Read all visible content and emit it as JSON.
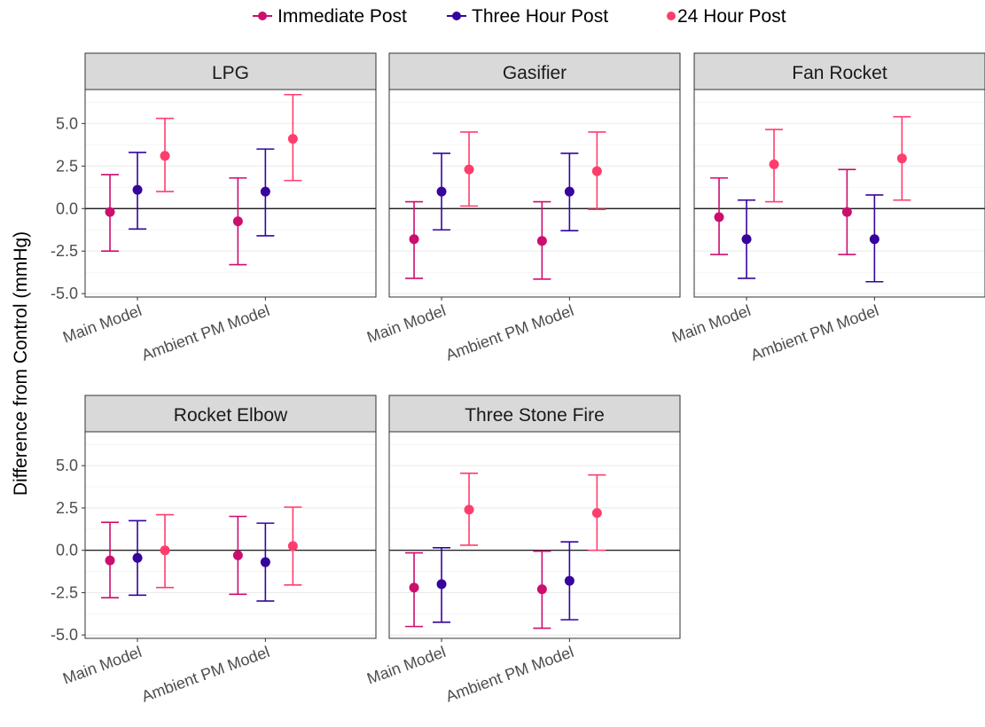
{
  "chart_data": {
    "type": "scatter",
    "subtype": "point-range facets",
    "ylabel": "Difference from Control (mmHg)",
    "xlabel": "",
    "ylim": [
      -5.2,
      7.0
    ],
    "yticks": [
      -5.0,
      -2.5,
      0.0,
      2.5,
      5.0
    ],
    "ytick_labels": [
      "-5.0",
      "-2.5",
      "0.0",
      "2.5",
      "5.0"
    ],
    "reference_line": 0,
    "grid": true,
    "legend_position": "top",
    "categories": [
      "Main Model",
      "Ambient PM Model"
    ],
    "series": [
      {
        "name": "Immediate Post",
        "color": "#cc0e6e"
      },
      {
        "name": "Three Hour Post",
        "color": "#35059d"
      },
      {
        "name": "24 Hour Post",
        "color": "#ff3d6d"
      }
    ],
    "panels": [
      {
        "title": "LPG",
        "data": [
          [
            {
              "y": -0.2,
              "lo": -2.5,
              "hi": 2.0
            },
            {
              "y": 1.1,
              "lo": -1.2,
              "hi": 3.3
            },
            {
              "y": 3.1,
              "lo": 1.0,
              "hi": 5.3
            }
          ],
          [
            {
              "y": -0.75,
              "lo": -3.3,
              "hi": 1.8
            },
            {
              "y": 1.0,
              "lo": -1.6,
              "hi": 3.5
            },
            {
              "y": 4.1,
              "lo": 1.65,
              "hi": 6.7
            }
          ]
        ]
      },
      {
        "title": "Gasifier",
        "data": [
          [
            {
              "y": -1.8,
              "lo": -4.1,
              "hi": 0.4
            },
            {
              "y": 1.0,
              "lo": -1.25,
              "hi": 3.25
            },
            {
              "y": 2.3,
              "lo": 0.15,
              "hi": 4.5
            }
          ],
          [
            {
              "y": -1.9,
              "lo": -4.15,
              "hi": 0.4
            },
            {
              "y": 1.0,
              "lo": -1.3,
              "hi": 3.25
            },
            {
              "y": 2.2,
              "lo": -0.05,
              "hi": 4.5
            }
          ]
        ]
      },
      {
        "title": "Fan Rocket",
        "data": [
          [
            {
              "y": -0.5,
              "lo": -2.7,
              "hi": 1.8
            },
            {
              "y": -1.8,
              "lo": -4.1,
              "hi": 0.5
            },
            {
              "y": 2.6,
              "lo": 0.4,
              "hi": 4.65
            }
          ],
          [
            {
              "y": -0.2,
              "lo": -2.7,
              "hi": 2.3
            },
            {
              "y": -1.8,
              "lo": -4.3,
              "hi": 0.8
            },
            {
              "y": 2.95,
              "lo": 0.5,
              "hi": 5.4
            }
          ]
        ]
      },
      {
        "title": "Rocket Elbow",
        "data": [
          [
            {
              "y": -0.6,
              "lo": -2.8,
              "hi": 1.65
            },
            {
              "y": -0.45,
              "lo": -2.65,
              "hi": 1.75
            },
            {
              "y": 0.0,
              "lo": -2.2,
              "hi": 2.1
            }
          ],
          [
            {
              "y": -0.3,
              "lo": -2.6,
              "hi": 2.0
            },
            {
              "y": -0.7,
              "lo": -3.0,
              "hi": 1.6
            },
            {
              "y": 0.25,
              "lo": -2.05,
              "hi": 2.55
            }
          ]
        ]
      },
      {
        "title": "Three Stone Fire",
        "data": [
          [
            {
              "y": -2.2,
              "lo": -4.5,
              "hi": -0.15
            },
            {
              "y": -2.0,
              "lo": -4.25,
              "hi": 0.15
            },
            {
              "y": 2.4,
              "lo": 0.3,
              "hi": 4.55
            }
          ],
          [
            {
              "y": -2.3,
              "lo": -4.6,
              "hi": -0.05
            },
            {
              "y": -1.8,
              "lo": -4.1,
              "hi": 0.5
            },
            {
              "y": 2.2,
              "lo": 0.0,
              "hi": 4.45
            }
          ]
        ]
      }
    ]
  }
}
